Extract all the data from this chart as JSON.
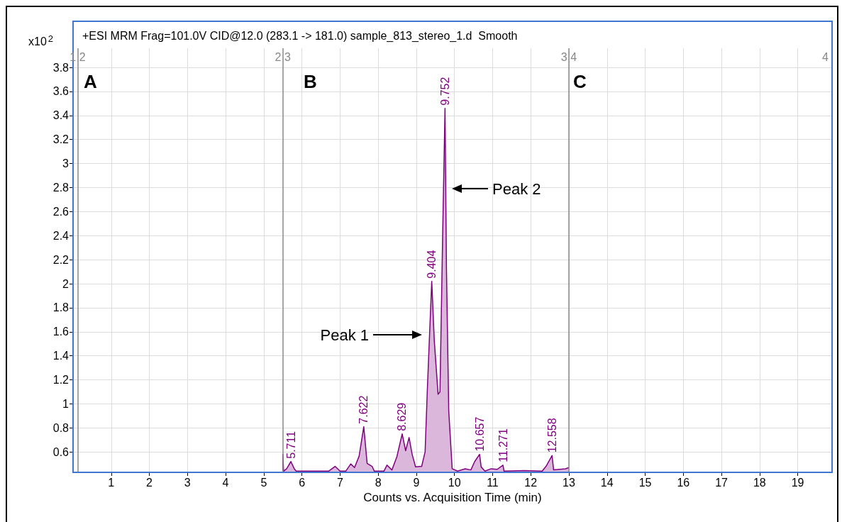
{
  "chart_data": {
    "type": "area",
    "title": "+ESI MRM Frag=101.0V CID@12.0 (283.1 -> 181.0) sample_813_stereo_1.d  Smooth",
    "xlabel": "Counts vs. Acquisition Time (min)",
    "ylabel": "x10$^{2}$",
    "xlim": [
      0,
      19.9
    ],
    "xticks": [
      1,
      2,
      3,
      4,
      5,
      6,
      7,
      8,
      9,
      10,
      11,
      12,
      13,
      14,
      15,
      16,
      17,
      18,
      19
    ],
    "ylim": [
      0.43,
      3.96
    ],
    "yticks": [
      0.6,
      0.8,
      1,
      1.2,
      1.4,
      1.6,
      1.8,
      2,
      2.2,
      2.4,
      2.6,
      2.8,
      3,
      3.2,
      3.4,
      3.6,
      3.8
    ],
    "grid": true,
    "marker": "none",
    "series": [
      {
        "color": "#800080",
        "x": [
          5.5,
          5.5,
          5.52,
          5.6,
          5.711,
          5.8,
          5.85,
          6.7,
          6.87,
          7.0,
          7.15,
          7.28,
          7.38,
          7.5,
          7.622,
          7.71,
          7.84,
          7.9,
          8.15,
          8.23,
          8.36,
          8.49,
          8.629,
          8.72,
          8.81,
          8.89,
          8.98,
          9.14,
          9.23,
          9.29,
          9.404,
          9.47,
          9.57,
          9.62,
          9.69,
          9.752,
          9.79,
          9.85,
          9.94,
          10.08,
          10.28,
          10.43,
          10.53,
          10.657,
          10.7,
          10.8,
          10.96,
          11.12,
          11.271,
          11.3,
          11.83,
          12.3,
          12.4,
          12.558,
          12.6,
          12.91,
          13.0
        ],
        "values": [
          0.44,
          0.58,
          0.44,
          0.46,
          0.52,
          0.46,
          0.44,
          0.44,
          0.48,
          0.44,
          0.44,
          0.5,
          0.47,
          0.565,
          0.81,
          0.505,
          0.48,
          0.44,
          0.44,
          0.49,
          0.45,
          0.56,
          0.75,
          0.61,
          0.72,
          0.58,
          0.476,
          0.48,
          0.6,
          1.13,
          2.02,
          1.53,
          1.08,
          1.1,
          2.4,
          3.46,
          2.12,
          0.94,
          0.46,
          0.44,
          0.46,
          0.45,
          0.52,
          0.58,
          0.475,
          0.44,
          0.46,
          0.455,
          0.49,
          0.44,
          0.445,
          0.44,
          0.48,
          0.57,
          0.45,
          0.46,
          0.47
        ]
      }
    ],
    "ref_lines": [
      {
        "axis": "x",
        "value": 0.12,
        "color": "#888888"
      },
      {
        "axis": "x",
        "value": 5.5,
        "color": "#888888"
      },
      {
        "axis": "x",
        "value": 13,
        "color": "#888888"
      }
    ],
    "annotations": [
      "1 2",
      "2 3",
      "3 4",
      "4",
      "A",
      "B",
      "C",
      "Peak 1",
      "Peak 2",
      {
        "text": "5.711",
        "x": 5.711,
        "y": 0.52
      },
      {
        "text": "7.622",
        "x": 7.622,
        "y": 0.81
      },
      {
        "text": "8.629",
        "x": 8.629,
        "y": 0.75
      },
      {
        "text": "9.404",
        "x": 9.404,
        "y": 2.02
      },
      {
        "text": "9.752",
        "x": 9.752,
        "y": 3.46
      },
      {
        "text": "10.657",
        "x": 10.657,
        "y": 0.58
      },
      {
        "text": "11.271",
        "x": 11.271,
        "y": 0.49
      },
      {
        "text": "12.558",
        "x": 12.558,
        "y": 0.57
      }
    ]
  }
}
